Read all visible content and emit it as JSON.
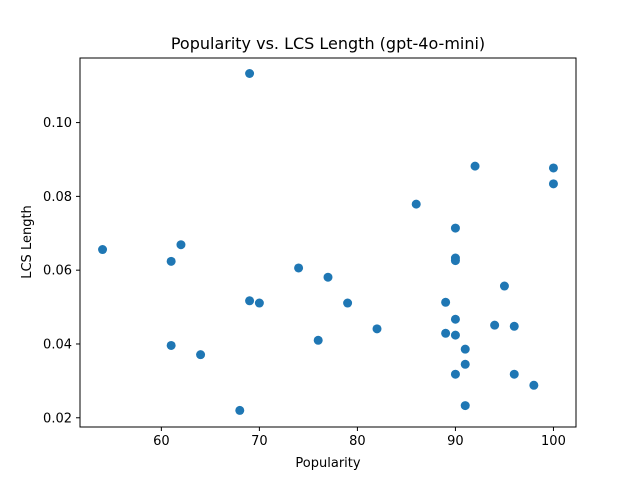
{
  "chart_data": {
    "type": "scatter",
    "title": "Popularity vs. LCS Length (gpt-4o-mini)",
    "xlabel": "Popularity",
    "ylabel": "LCS Length",
    "xlim": [
      51.7,
      102.3
    ],
    "ylim": [
      0.0175,
      0.1175
    ],
    "xticks": [
      60,
      70,
      80,
      90,
      100
    ],
    "xtick_labels": [
      "60",
      "70",
      "80",
      "90",
      "100"
    ],
    "yticks": [
      0.02,
      0.04,
      0.06,
      0.08,
      0.1
    ],
    "ytick_labels": [
      "0.02",
      "0.04",
      "0.06",
      "0.08",
      "0.10"
    ],
    "grid": false,
    "marker_color": "#1f77b4",
    "points": [
      {
        "x": 54,
        "y": 0.0656
      },
      {
        "x": 61,
        "y": 0.0624
      },
      {
        "x": 61,
        "y": 0.0396
      },
      {
        "x": 62,
        "y": 0.0669
      },
      {
        "x": 64,
        "y": 0.0371
      },
      {
        "x": 68,
        "y": 0.022
      },
      {
        "x": 69,
        "y": 0.1133
      },
      {
        "x": 69,
        "y": 0.0517
      },
      {
        "x": 70,
        "y": 0.0511
      },
      {
        "x": 74,
        "y": 0.0606
      },
      {
        "x": 76,
        "y": 0.041
      },
      {
        "x": 77,
        "y": 0.0581
      },
      {
        "x": 79,
        "y": 0.0511
      },
      {
        "x": 82,
        "y": 0.0441
      },
      {
        "x": 86,
        "y": 0.0779
      },
      {
        "x": 89,
        "y": 0.0513
      },
      {
        "x": 89,
        "y": 0.0429
      },
      {
        "x": 90,
        "y": 0.0714
      },
      {
        "x": 90,
        "y": 0.0633
      },
      {
        "x": 90,
        "y": 0.0626
      },
      {
        "x": 90,
        "y": 0.0467
      },
      {
        "x": 90,
        "y": 0.0424
      },
      {
        "x": 90,
        "y": 0.0318
      },
      {
        "x": 91,
        "y": 0.0386
      },
      {
        "x": 91,
        "y": 0.0345
      },
      {
        "x": 91,
        "y": 0.0233
      },
      {
        "x": 92,
        "y": 0.0882
      },
      {
        "x": 94,
        "y": 0.0451
      },
      {
        "x": 95,
        "y": 0.0557
      },
      {
        "x": 96,
        "y": 0.0448
      },
      {
        "x": 96,
        "y": 0.0318
      },
      {
        "x": 98,
        "y": 0.0288
      },
      {
        "x": 100,
        "y": 0.0877
      },
      {
        "x": 100,
        "y": 0.0834
      }
    ]
  }
}
